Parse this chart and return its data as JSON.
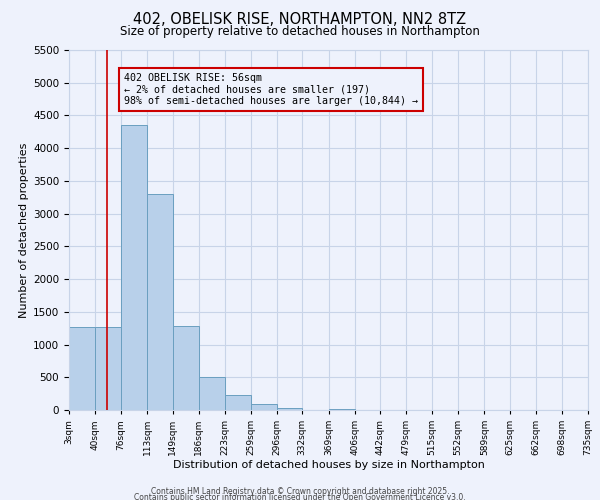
{
  "title": "402, OBELISK RISE, NORTHAMPTON, NN2 8TZ",
  "subtitle": "Size of property relative to detached houses in Northampton",
  "xlabel": "Distribution of detached houses by size in Northampton",
  "ylabel": "Number of detached properties",
  "bin_edges": [
    3,
    40,
    76,
    113,
    149,
    186,
    223,
    259,
    296,
    332,
    369,
    406,
    442,
    479,
    515,
    552,
    589,
    625,
    662,
    698,
    735
  ],
  "bar_heights": [
    1270,
    1270,
    4350,
    3300,
    1280,
    500,
    230,
    90,
    30,
    0,
    20,
    0,
    0,
    0,
    0,
    0,
    0,
    0,
    0,
    0
  ],
  "bar_color": "#b8d0ea",
  "bar_edge_color": "#6a9fc0",
  "tick_labels": [
    "3sqm",
    "40sqm",
    "76sqm",
    "113sqm",
    "149sqm",
    "186sqm",
    "223sqm",
    "259sqm",
    "296sqm",
    "332sqm",
    "369sqm",
    "406sqm",
    "442sqm",
    "479sqm",
    "515sqm",
    "552sqm",
    "589sqm",
    "625sqm",
    "662sqm",
    "698sqm",
    "735sqm"
  ],
  "ylim": [
    0,
    5500
  ],
  "yticks": [
    0,
    500,
    1000,
    1500,
    2000,
    2500,
    3000,
    3500,
    4000,
    4500,
    5000,
    5500
  ],
  "vline_x": 56,
  "vline_color": "#cc0000",
  "annotation_text": "402 OBELISK RISE: 56sqm\n← 2% of detached houses are smaller (197)\n98% of semi-detached houses are larger (10,844) →",
  "bg_color": "#eef2fc",
  "grid_color": "#c8d4e8",
  "footer_line1": "Contains HM Land Registry data © Crown copyright and database right 2025.",
  "footer_line2": "Contains public sector information licensed under the Open Government Licence v3.0."
}
